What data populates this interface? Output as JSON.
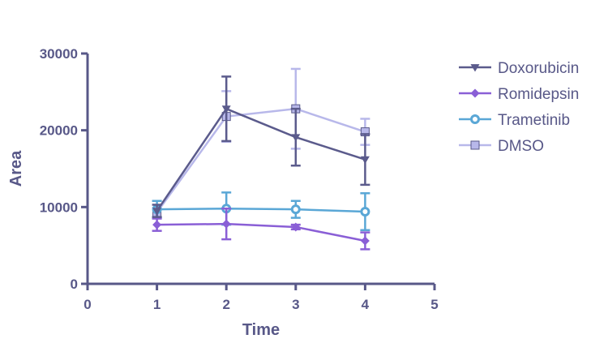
{
  "chart_data": {
    "type": "line",
    "title": "",
    "xlabel": "Time",
    "ylabel": "Area",
    "xlim": [
      0,
      5
    ],
    "ylim": [
      0,
      30000
    ],
    "xticks": [
      "0",
      "1",
      "2",
      "3",
      "4",
      "5"
    ],
    "yticks": [
      "0",
      "10000",
      "20000",
      "30000"
    ],
    "grid": false,
    "legend_position": "right",
    "x": [
      1,
      2,
      3,
      4
    ],
    "series": [
      {
        "name": "Doxorubicin",
        "color": "#5b5b8c",
        "marker": "triangle-down",
        "values": [
          9500,
          22800,
          19100,
          16200
        ],
        "err": [
          800,
          4200,
          3700,
          3300
        ]
      },
      {
        "name": "Romidepsin",
        "color": "#8a5fd6",
        "marker": "diamond",
        "values": [
          7700,
          7800,
          7400,
          5600
        ],
        "err": [
          800,
          2000,
          300,
          1100
        ]
      },
      {
        "name": "Trametinib",
        "color": "#5aa7d6",
        "marker": "circle",
        "values": [
          9700,
          9800,
          9700,
          9400
        ],
        "err": [
          1100,
          2100,
          1100,
          2400
        ]
      },
      {
        "name": "DMSO",
        "color": "#b8b8ea",
        "marker": "square",
        "values": [
          9300,
          21800,
          22800,
          19800
        ],
        "err": [
          600,
          3300,
          5200,
          1700
        ]
      }
    ]
  },
  "styles": {
    "axis_color": "#585888",
    "label_color": "#585888"
  }
}
